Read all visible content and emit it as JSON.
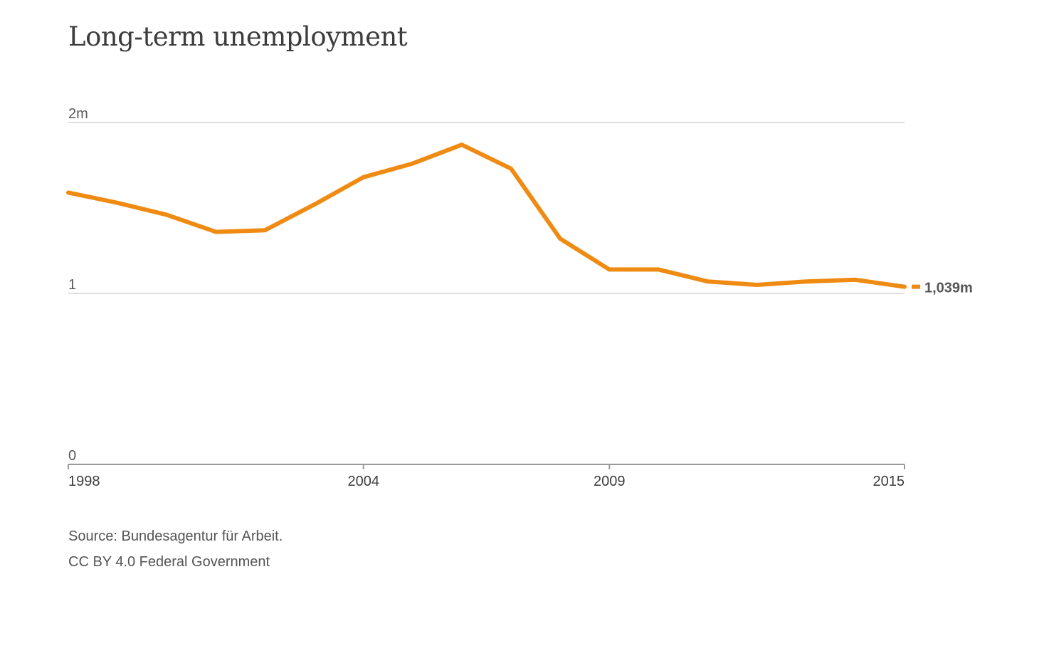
{
  "chart_data": {
    "type": "line",
    "title": "Long-term unemployment",
    "xlabel": "",
    "ylabel": "",
    "x": [
      1998,
      1999,
      2000,
      2001,
      2002,
      2003,
      2004,
      2005,
      2006,
      2007,
      2008,
      2009,
      2010,
      2011,
      2012,
      2013,
      2014,
      2015
    ],
    "series": [
      {
        "values": [
          1.59,
          1.53,
          1.46,
          1.36,
          1.37,
          1.52,
          1.68,
          1.76,
          1.87,
          1.73,
          1.32,
          1.14,
          1.14,
          1.07,
          1.05,
          1.07,
          1.08,
          1.039
        ]
      }
    ],
    "ylim": [
      0,
      2
    ],
    "xlim": [
      1998,
      2015
    ],
    "y_ticks": [
      {
        "value": 0,
        "label": "0"
      },
      {
        "value": 1,
        "label": "1"
      },
      {
        "value": 2,
        "label": "2m"
      }
    ],
    "x_ticks": [
      {
        "value": 1998,
        "label": "1998"
      },
      {
        "value": 2004,
        "label": "2004"
      },
      {
        "value": 2009,
        "label": "2009"
      },
      {
        "value": 2015,
        "label": "2015"
      }
    ],
    "end_label": "1,039m",
    "line_color": "#ef8b12",
    "grid": true,
    "legend": "none"
  },
  "footer": {
    "source": "Source: Bundesagentur für Arbeit.",
    "license": "CC BY 4.0 Federal Government"
  }
}
